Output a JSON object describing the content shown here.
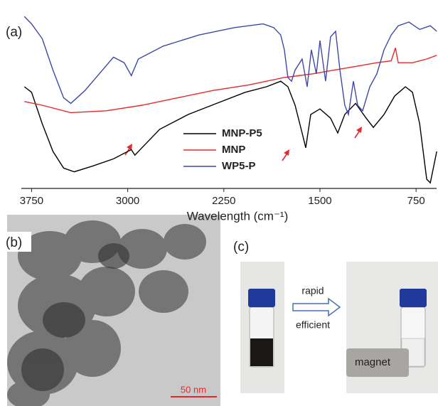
{
  "chart_data": {
    "type": "line",
    "xlabel": "Wavelength (cm⁻¹)",
    "xlim": [
      3830,
      590
    ],
    "ylim": [
      0,
      100
    ],
    "xticks": [
      3750,
      3000,
      2250,
      1500,
      750
    ],
    "legend": "center",
    "series": [
      {
        "name": "MNP-P5",
        "color": "#000000",
        "x": [
          3806,
          3750,
          3667,
          3583,
          3500,
          3417,
          3278,
          3111,
          2972,
          2944,
          2889,
          2750,
          2528,
          2306,
          2083,
          1917,
          1806,
          1750,
          1694,
          1639,
          1611,
          1572,
          1500,
          1417,
          1361,
          1306,
          1222,
          1139,
          1083,
          1000,
          917,
          833,
          778,
          722,
          667,
          639,
          589
        ],
        "values": [
          55,
          52,
          35,
          20,
          11,
          9,
          12,
          16,
          21,
          18,
          22,
          32,
          40,
          46,
          52,
          55,
          58,
          55,
          45,
          30,
          22,
          40,
          43,
          38,
          30,
          40,
          46,
          38,
          33,
          40,
          50,
          55,
          52,
          35,
          5,
          3,
          20
        ]
      },
      {
        "name": "MNP",
        "color": "#e8282a",
        "x": [
          3806,
          3667,
          3444,
          3167,
          2889,
          2611,
          2333,
          2056,
          1778,
          1556,
          1389,
          1222,
          1056,
          944,
          911,
          889,
          778,
          667,
          589
        ],
        "values": [
          47,
          45,
          41,
          42,
          45,
          49,
          53,
          56,
          60,
          62,
          64,
          66,
          68,
          69,
          76,
          68,
          68,
          70,
          72
        ]
      },
      {
        "name": "WP5-P",
        "color": "#3f48a8",
        "x": [
          3806,
          3750,
          3667,
          3583,
          3500,
          3444,
          3333,
          3222,
          3111,
          3028,
          2972,
          2917,
          2722,
          2444,
          2167,
          1944,
          1861,
          1806,
          1778,
          1750,
          1722,
          1694,
          1639,
          1600,
          1567,
          1528,
          1500,
          1456,
          1417,
          1378,
          1344,
          1306,
          1278,
          1239,
          1206,
          1167,
          1111,
          1056,
          1000,
          944,
          889,
          806,
          722,
          639,
          589
        ],
        "values": [
          93,
          89,
          81,
          64,
          49,
          46,
          53,
          62,
          71,
          68,
          61,
          70,
          77,
          83,
          87,
          89,
          87,
          83,
          75,
          60,
          58,
          64,
          70,
          55,
          75,
          62,
          80,
          58,
          82,
          85,
          64,
          45,
          40,
          58,
          45,
          42,
          55,
          62,
          75,
          83,
          88,
          90,
          86,
          88,
          85
        ]
      }
    ]
  },
  "panels": {
    "a": "(a)",
    "b": "(b)",
    "c": "(c)"
  },
  "scale_bar": "50 nm",
  "captions": {
    "above_arrow": "rapid",
    "below_arrow": "efficient",
    "magnet": "magnet"
  }
}
